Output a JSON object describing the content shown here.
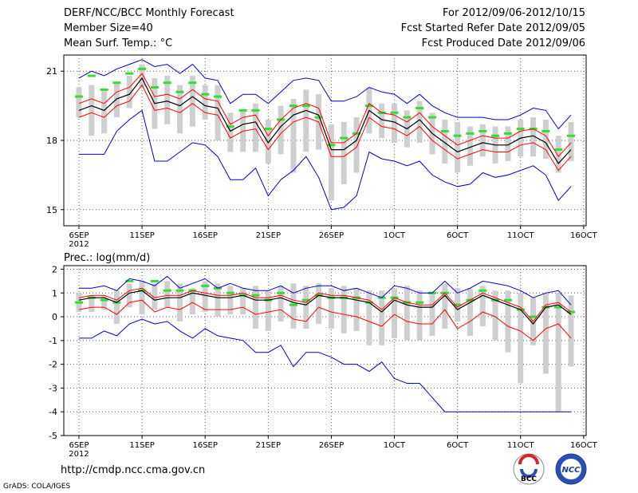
{
  "header": {
    "title": "DERF/NCC/BCC Monthly Forecast",
    "member_size": "Member Size=40",
    "variable": "Mean Surf. Temp.: °C",
    "period": "For 2012/09/06-2012/10/15",
    "fcst_started": "Fcst Started Refer Date 2012/09/05",
    "fcst_produced": "Fcst Produced Date 2012/09/06"
  },
  "footer": {
    "url": "http://cmdp.ncc.cma.gov.cn",
    "credit": "GrADS: COLA/IGES",
    "logo_bcc": "BCC",
    "logo_ncc": "NCC"
  },
  "colors": {
    "mean": "#000000",
    "spread": "#ff0000",
    "envelope": "#0000cc",
    "obs_marker": "#33dd33",
    "box": "#cfcfcf"
  },
  "chart_data": [
    {
      "type": "ensemble-boxplot",
      "title": "",
      "ylabel": "Mean Surf. Temp.: °C",
      "ylim": [
        14.3,
        21.7
      ],
      "yticks": [
        15,
        18,
        21
      ],
      "xtick_labels": [
        "6SEP",
        "11SEP",
        "16SEP",
        "21SEP",
        "26SEP",
        "1OCT",
        "6OCT",
        "11OCT",
        "16OCT"
      ],
      "xtick_days": [
        1,
        6,
        11,
        16,
        21,
        26,
        31,
        36,
        41
      ],
      "x_year_label": "2012",
      "days": [
        1,
        2,
        3,
        4,
        5,
        6,
        7,
        8,
        9,
        10,
        11,
        12,
        13,
        14,
        15,
        16,
        17,
        18,
        19,
        20,
        21,
        22,
        23,
        24,
        25,
        26,
        27,
        28,
        29,
        30,
        31,
        32,
        33,
        34,
        35,
        36,
        37,
        38,
        39,
        40
      ],
      "mean": [
        19.3,
        19.5,
        19.3,
        19.8,
        20.0,
        20.7,
        19.6,
        19.7,
        19.5,
        19.9,
        19.5,
        19.4,
        18.4,
        18.7,
        18.8,
        17.9,
        18.6,
        19.1,
        19.3,
        19.1,
        17.6,
        17.6,
        18.0,
        19.3,
        18.9,
        18.8,
        18.5,
        18.9,
        18.3,
        17.9,
        17.5,
        17.7,
        17.9,
        17.8,
        17.8,
        18.1,
        18.2,
        17.9,
        17.0,
        17.6
      ],
      "upper": [
        19.6,
        19.8,
        19.6,
        20.1,
        20.3,
        20.9,
        19.9,
        20.0,
        19.8,
        20.2,
        19.8,
        19.7,
        18.7,
        19.0,
        19.1,
        18.2,
        18.9,
        19.4,
        19.6,
        19.4,
        17.9,
        17.9,
        18.3,
        19.6,
        19.2,
        19.1,
        18.8,
        19.2,
        18.6,
        18.2,
        17.8,
        18.0,
        18.2,
        18.1,
        18.1,
        18.4,
        18.5,
        18.2,
        17.3,
        17.9
      ],
      "lower": [
        19.0,
        19.2,
        19.0,
        19.5,
        19.7,
        20.4,
        19.3,
        19.4,
        19.2,
        19.6,
        19.2,
        19.1,
        18.1,
        18.4,
        18.5,
        17.6,
        18.3,
        18.8,
        19.0,
        18.8,
        17.3,
        17.3,
        17.7,
        19.0,
        18.6,
        18.5,
        18.2,
        18.6,
        18.0,
        17.6,
        17.2,
        17.4,
        17.6,
        17.5,
        17.5,
        17.8,
        17.9,
        17.6,
        16.7,
        17.3
      ],
      "max": [
        20.7,
        21.0,
        20.8,
        21.1,
        21.3,
        21.5,
        21.2,
        21.3,
        20.9,
        21.3,
        20.7,
        20.6,
        19.6,
        20.0,
        20.0,
        19.6,
        20.1,
        20.6,
        20.7,
        20.6,
        19.7,
        19.7,
        19.9,
        20.3,
        20.1,
        20.0,
        19.6,
        20.0,
        19.5,
        19.2,
        19.0,
        19.0,
        19.0,
        18.9,
        18.9,
        19.1,
        19.4,
        19.3,
        18.5,
        19.1
      ],
      "min": [
        17.4,
        17.4,
        17.4,
        18.4,
        18.9,
        19.3,
        17.1,
        17.1,
        17.5,
        17.9,
        17.8,
        17.3,
        16.3,
        16.3,
        16.8,
        15.6,
        16.3,
        16.7,
        17.3,
        16.4,
        15.0,
        15.1,
        15.6,
        17.5,
        17.2,
        17.1,
        16.9,
        17.1,
        16.5,
        16.2,
        16.0,
        16.1,
        16.6,
        16.4,
        16.5,
        16.7,
        16.9,
        16.5,
        15.4,
        16.0
      ],
      "box_top": [
        20.3,
        20.4,
        20.2,
        20.5,
        20.8,
        21.3,
        20.7,
        20.8,
        20.4,
        20.8,
        20.4,
        20.4,
        19.2,
        19.3,
        19.6,
        18.9,
        19.5,
        19.8,
        20.2,
        20.0,
        18.7,
        18.8,
        19.0,
        20.3,
        19.6,
        19.6,
        19.3,
        19.7,
        19.2,
        18.9,
        18.8,
        18.6,
        18.7,
        18.6,
        18.6,
        18.9,
        19.0,
        18.9,
        18.2,
        18.8
      ],
      "box_bot": [
        19.0,
        18.2,
        18.3,
        19.0,
        19.4,
        20.3,
        18.5,
        18.7,
        18.3,
        18.6,
        18.9,
        18.0,
        17.5,
        17.5,
        17.5,
        17.0,
        17.4,
        16.6,
        17.5,
        17.6,
        15.4,
        16.1,
        16.6,
        18.3,
        18.1,
        17.9,
        17.7,
        17.9,
        17.4,
        17.0,
        16.6,
        16.9,
        17.3,
        17.0,
        17.1,
        17.3,
        17.3,
        17.2,
        16.6,
        17.1
      ],
      "markers": [
        19.9,
        20.8,
        20.2,
        20.5,
        20.9,
        21.1,
        20.3,
        20.5,
        20.1,
        20.5,
        20.0,
        19.9,
        18.6,
        19.3,
        19.3,
        18.5,
        18.9,
        19.5,
        19.5,
        19.0,
        17.8,
        18.1,
        18.3,
        19.5,
        19.2,
        19.2,
        19.0,
        19.4,
        19.0,
        18.4,
        18.2,
        18.3,
        18.4,
        18.2,
        18.3,
        18.5,
        18.5,
        18.4,
        17.6,
        18.2
      ]
    },
    {
      "type": "ensemble-boxplot",
      "title": "Prec.: log(mm/d)",
      "ylabel": "Prec.: log(mm/d)",
      "ylim": [
        -5,
        2.15
      ],
      "yticks": [
        -5,
        -4,
        -3,
        -2,
        -1,
        0,
        1,
        2
      ],
      "xtick_labels": [
        "6SEP",
        "11SEP",
        "16SEP",
        "21SEP",
        "26SEP",
        "1OCT",
        "6OCT",
        "11OCT",
        "16OCT"
      ],
      "xtick_days": [
        1,
        6,
        11,
        16,
        21,
        26,
        31,
        36,
        41
      ],
      "x_year_label": "2012",
      "days": [
        1,
        2,
        3,
        4,
        5,
        6,
        7,
        8,
        9,
        10,
        11,
        12,
        13,
        14,
        15,
        16,
        17,
        18,
        19,
        20,
        21,
        22,
        23,
        24,
        25,
        26,
        27,
        28,
        29,
        30,
        31,
        32,
        33,
        34,
        35,
        36,
        37,
        38,
        39,
        40
      ],
      "mean": [
        0.7,
        0.8,
        0.8,
        0.6,
        1.0,
        1.1,
        0.7,
        0.8,
        0.8,
        1.0,
        0.9,
        0.8,
        0.8,
        0.9,
        0.7,
        0.7,
        0.8,
        0.6,
        0.5,
        0.9,
        0.8,
        0.8,
        0.7,
        0.6,
        0.2,
        0.7,
        0.5,
        0.4,
        0.4,
        0.9,
        0.3,
        0.6,
        0.9,
        0.7,
        0.5,
        0.3,
        -0.3,
        0.4,
        0.5,
        0.1
      ],
      "upper": [
        0.8,
        0.9,
        0.9,
        0.7,
        1.1,
        1.2,
        0.8,
        0.9,
        0.9,
        1.1,
        1.0,
        0.9,
        0.9,
        1.0,
        0.8,
        0.8,
        0.9,
        0.7,
        0.6,
        1.0,
        0.9,
        0.9,
        0.8,
        0.7,
        0.3,
        0.8,
        0.6,
        0.5,
        0.5,
        1.0,
        0.4,
        0.7,
        1.0,
        0.8,
        0.6,
        0.4,
        -0.2,
        0.5,
        0.6,
        0.2
      ],
      "lower": [
        0.3,
        0.4,
        0.4,
        0.1,
        0.6,
        0.7,
        0.2,
        0.4,
        0.3,
        0.6,
        0.3,
        0.3,
        0.3,
        0.4,
        0.1,
        0.2,
        0.3,
        -0.1,
        -0.2,
        0.4,
        0.2,
        0.1,
        0.0,
        -0.2,
        -0.4,
        0.1,
        -0.2,
        -0.3,
        -0.3,
        0.3,
        -0.5,
        -0.2,
        0.2,
        0.0,
        -0.4,
        -0.6,
        -1.0,
        -0.5,
        -0.3,
        -0.9
      ],
      "max": [
        1.2,
        1.2,
        1.3,
        1.1,
        1.6,
        1.5,
        1.3,
        1.7,
        1.2,
        1.4,
        1.6,
        1.2,
        1.4,
        1.2,
        1.1,
        1.1,
        1.3,
        1.0,
        1.2,
        1.3,
        1.3,
        1.1,
        1.2,
        1.0,
        0.8,
        1.3,
        1.2,
        1.0,
        1.0,
        1.5,
        1.0,
        1.2,
        1.5,
        1.4,
        1.3,
        1.1,
        0.8,
        1.0,
        1.1,
        0.5
      ],
      "min": [
        -0.9,
        -0.9,
        -0.6,
        -0.8,
        -0.3,
        -0.1,
        -0.3,
        -0.2,
        -0.6,
        -0.9,
        -0.5,
        -0.8,
        -0.9,
        -1.0,
        -1.5,
        -1.5,
        -1.2,
        -2.1,
        -1.5,
        -1.5,
        -1.7,
        -2.0,
        -2.0,
        -2.3,
        -1.9,
        -2.6,
        -2.8,
        -2.8,
        -3.4,
        -4.0,
        -4.0,
        -4.0,
        -4.0,
        -4.0,
        -4.0,
        -4.0,
        -4.0,
        -4.0,
        -4.0,
        -4.0
      ],
      "box_top": [
        1.0,
        0.9,
        0.9,
        1.1,
        1.4,
        1.5,
        1.4,
        1.5,
        1.4,
        1.2,
        1.5,
        1.4,
        1.3,
        1.2,
        1.3,
        1.1,
        1.3,
        1.4,
        1.3,
        1.4,
        1.2,
        1.3,
        1.2,
        1.1,
        1.1,
        1.2,
        1.3,
        1.1,
        1.0,
        1.4,
        1.2,
        1.2,
        1.3,
        1.1,
        1.1,
        1.0,
        0.8,
        1.0,
        1.0,
        0.9
      ],
      "box_bot": [
        0.2,
        0.2,
        0.3,
        -0.3,
        0.4,
        0.1,
        0.3,
        0.4,
        -0.2,
        0.1,
        0.2,
        0.0,
        0.1,
        0.1,
        -0.5,
        -0.6,
        -0.2,
        -0.5,
        -0.5,
        -0.3,
        -0.5,
        -0.7,
        -0.6,
        -1.2,
        -1.2,
        -0.9,
        -1.0,
        -1.0,
        -0.8,
        -0.5,
        -0.2,
        -0.8,
        -0.4,
        -1.0,
        -1.5,
        -2.8,
        -1.2,
        -2.4,
        -4.0,
        -2.1
      ],
      "markers": [
        0.6,
        0.8,
        0.7,
        0.6,
        1.5,
        1.1,
        1.5,
        1.1,
        1.1,
        1.1,
        1.3,
        1.2,
        1.0,
        0.9,
        0.9,
        0.7,
        1.0,
        0.5,
        0.7,
        0.9,
        0.8,
        0.8,
        0.8,
        0.6,
        0.8,
        0.8,
        0.6,
        0.6,
        1.0,
        1.0,
        0.5,
        0.7,
        1.1,
        0.7,
        0.7,
        0.3,
        0.0,
        0.4,
        0.4,
        0.2
      ]
    }
  ]
}
